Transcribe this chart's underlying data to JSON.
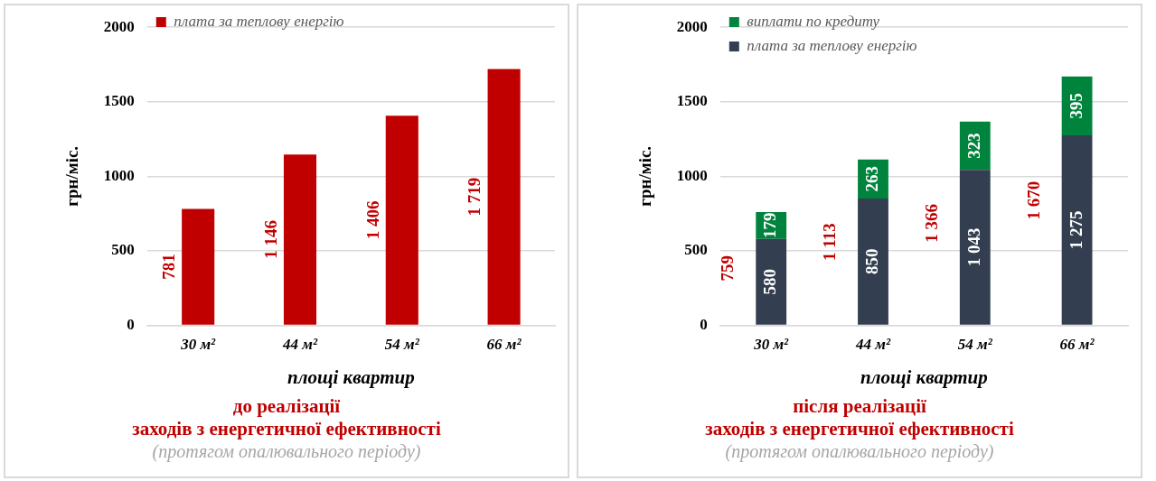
{
  "chart_data": [
    {
      "type": "bar",
      "title": "до реалізації\nзаходів з енергетичної ефективності",
      "subtitle": "(протягом опалювального періоду)",
      "xlabel": "площі квартир",
      "ylabel": "грн/міс.",
      "categories": [
        "30 м²",
        "44 м²",
        "54 м²",
        "66 м²"
      ],
      "series": [
        {
          "name": "плата за теплову енергію",
          "color": "#c00000",
          "values": [
            781,
            1146,
            1406,
            1719
          ],
          "value_labels": [
            "781",
            "1 146",
            "1 406",
            "1 719"
          ]
        }
      ],
      "ylim": [
        0,
        2000
      ],
      "yticks": [
        0,
        500,
        1000,
        1500,
        2000
      ],
      "grid": "y",
      "legend": "top left"
    },
    {
      "type": "bar",
      "stacked": true,
      "title": "після реалізації\nзаходів з енергетичної ефективності",
      "subtitle": "(протягом опалювального періоду)",
      "xlabel": "площі квартир",
      "ylabel": "грн/міс.",
      "categories": [
        "30 м²",
        "44 м²",
        "54 м²",
        "66 м²"
      ],
      "series": [
        {
          "name": "плата за теплову енергію",
          "color": "#333f50",
          "values": [
            580,
            850,
            1043,
            1275
          ],
          "value_labels": [
            "580",
            "850",
            "1 043",
            "1 275"
          ]
        },
        {
          "name": "виплати по кредиту",
          "color": "#00843d",
          "values": [
            179,
            263,
            323,
            395
          ],
          "value_labels": [
            "179",
            "263",
            "323",
            "395"
          ]
        }
      ],
      "totals": [
        "759",
        "1 113",
        "1 366",
        "1 670"
      ],
      "ylim": [
        0,
        2000
      ],
      "yticks": [
        0,
        500,
        1000,
        1500,
        2000
      ],
      "grid": "y",
      "legend": "top left"
    }
  ]
}
